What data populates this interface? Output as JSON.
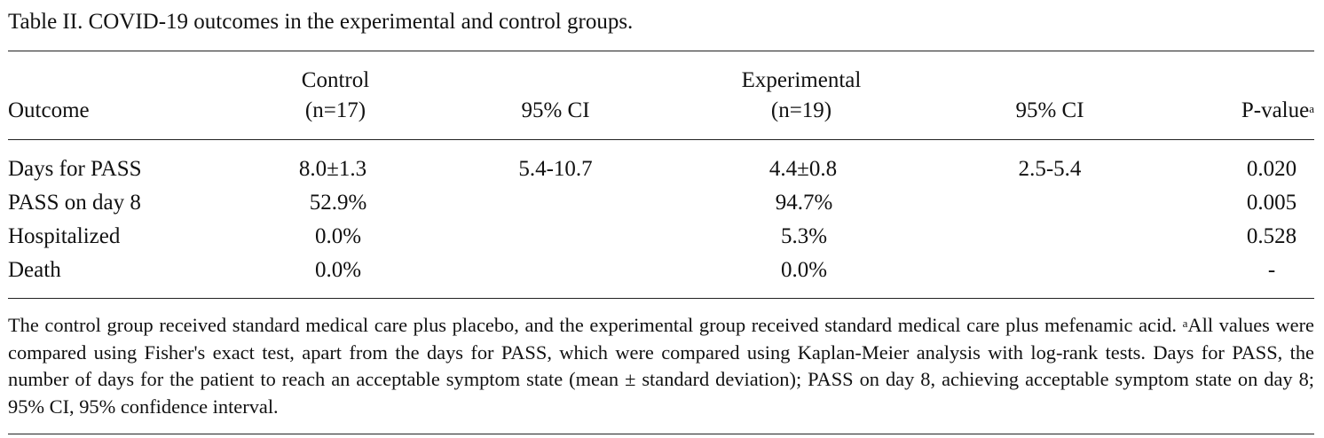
{
  "caption": "Table II. COVID-19 outcomes in the experimental and control groups.",
  "headers": {
    "outcome": "Outcome",
    "control_line1": "Control",
    "control_line2": "(n=17)",
    "ci_control": "95% CI",
    "experimental_line1": "Experimental",
    "experimental_line2": "(n=19)",
    "ci_experimental": "95% CI",
    "p_value": "P-value",
    "p_value_sup": "a"
  },
  "rows": [
    {
      "outcome": "Days for PASS",
      "control": "8.0±1.3",
      "ci_control": "5.4-10.7",
      "experimental": "4.4±0.8",
      "ci_experimental": "2.5-5.4",
      "p_value": "0.020"
    },
    {
      "outcome": "PASS on day 8",
      "control": "52.9%",
      "ci_control": "",
      "experimental": "94.7%",
      "ci_experimental": "",
      "p_value": "0.005"
    },
    {
      "outcome": "Hospitalized",
      "control": "0.0%",
      "ci_control": "",
      "experimental": "5.3%",
      "ci_experimental": "",
      "p_value": "0.528"
    },
    {
      "outcome": "Death",
      "control": "0.0%",
      "ci_control": "",
      "experimental": "0.0%",
      "ci_experimental": "",
      "p_value": "-"
    }
  ],
  "footnote": {
    "part1": "The control group received standard medical care plus placebo, and the experimental group received standard medical care plus mefenamic acid. ",
    "sup": "a",
    "part2": "All values were compared using Fisher's exact test, apart from the days for PASS, which were compared using Kaplan-Meier analysis with log-rank tests. Days for PASS, the number of days for the patient to reach an acceptable symptom state (mean ± standard deviation); PASS on day 8, achieving acceptable symptom state on day 8; 95% CI, 95% confidence interval."
  }
}
